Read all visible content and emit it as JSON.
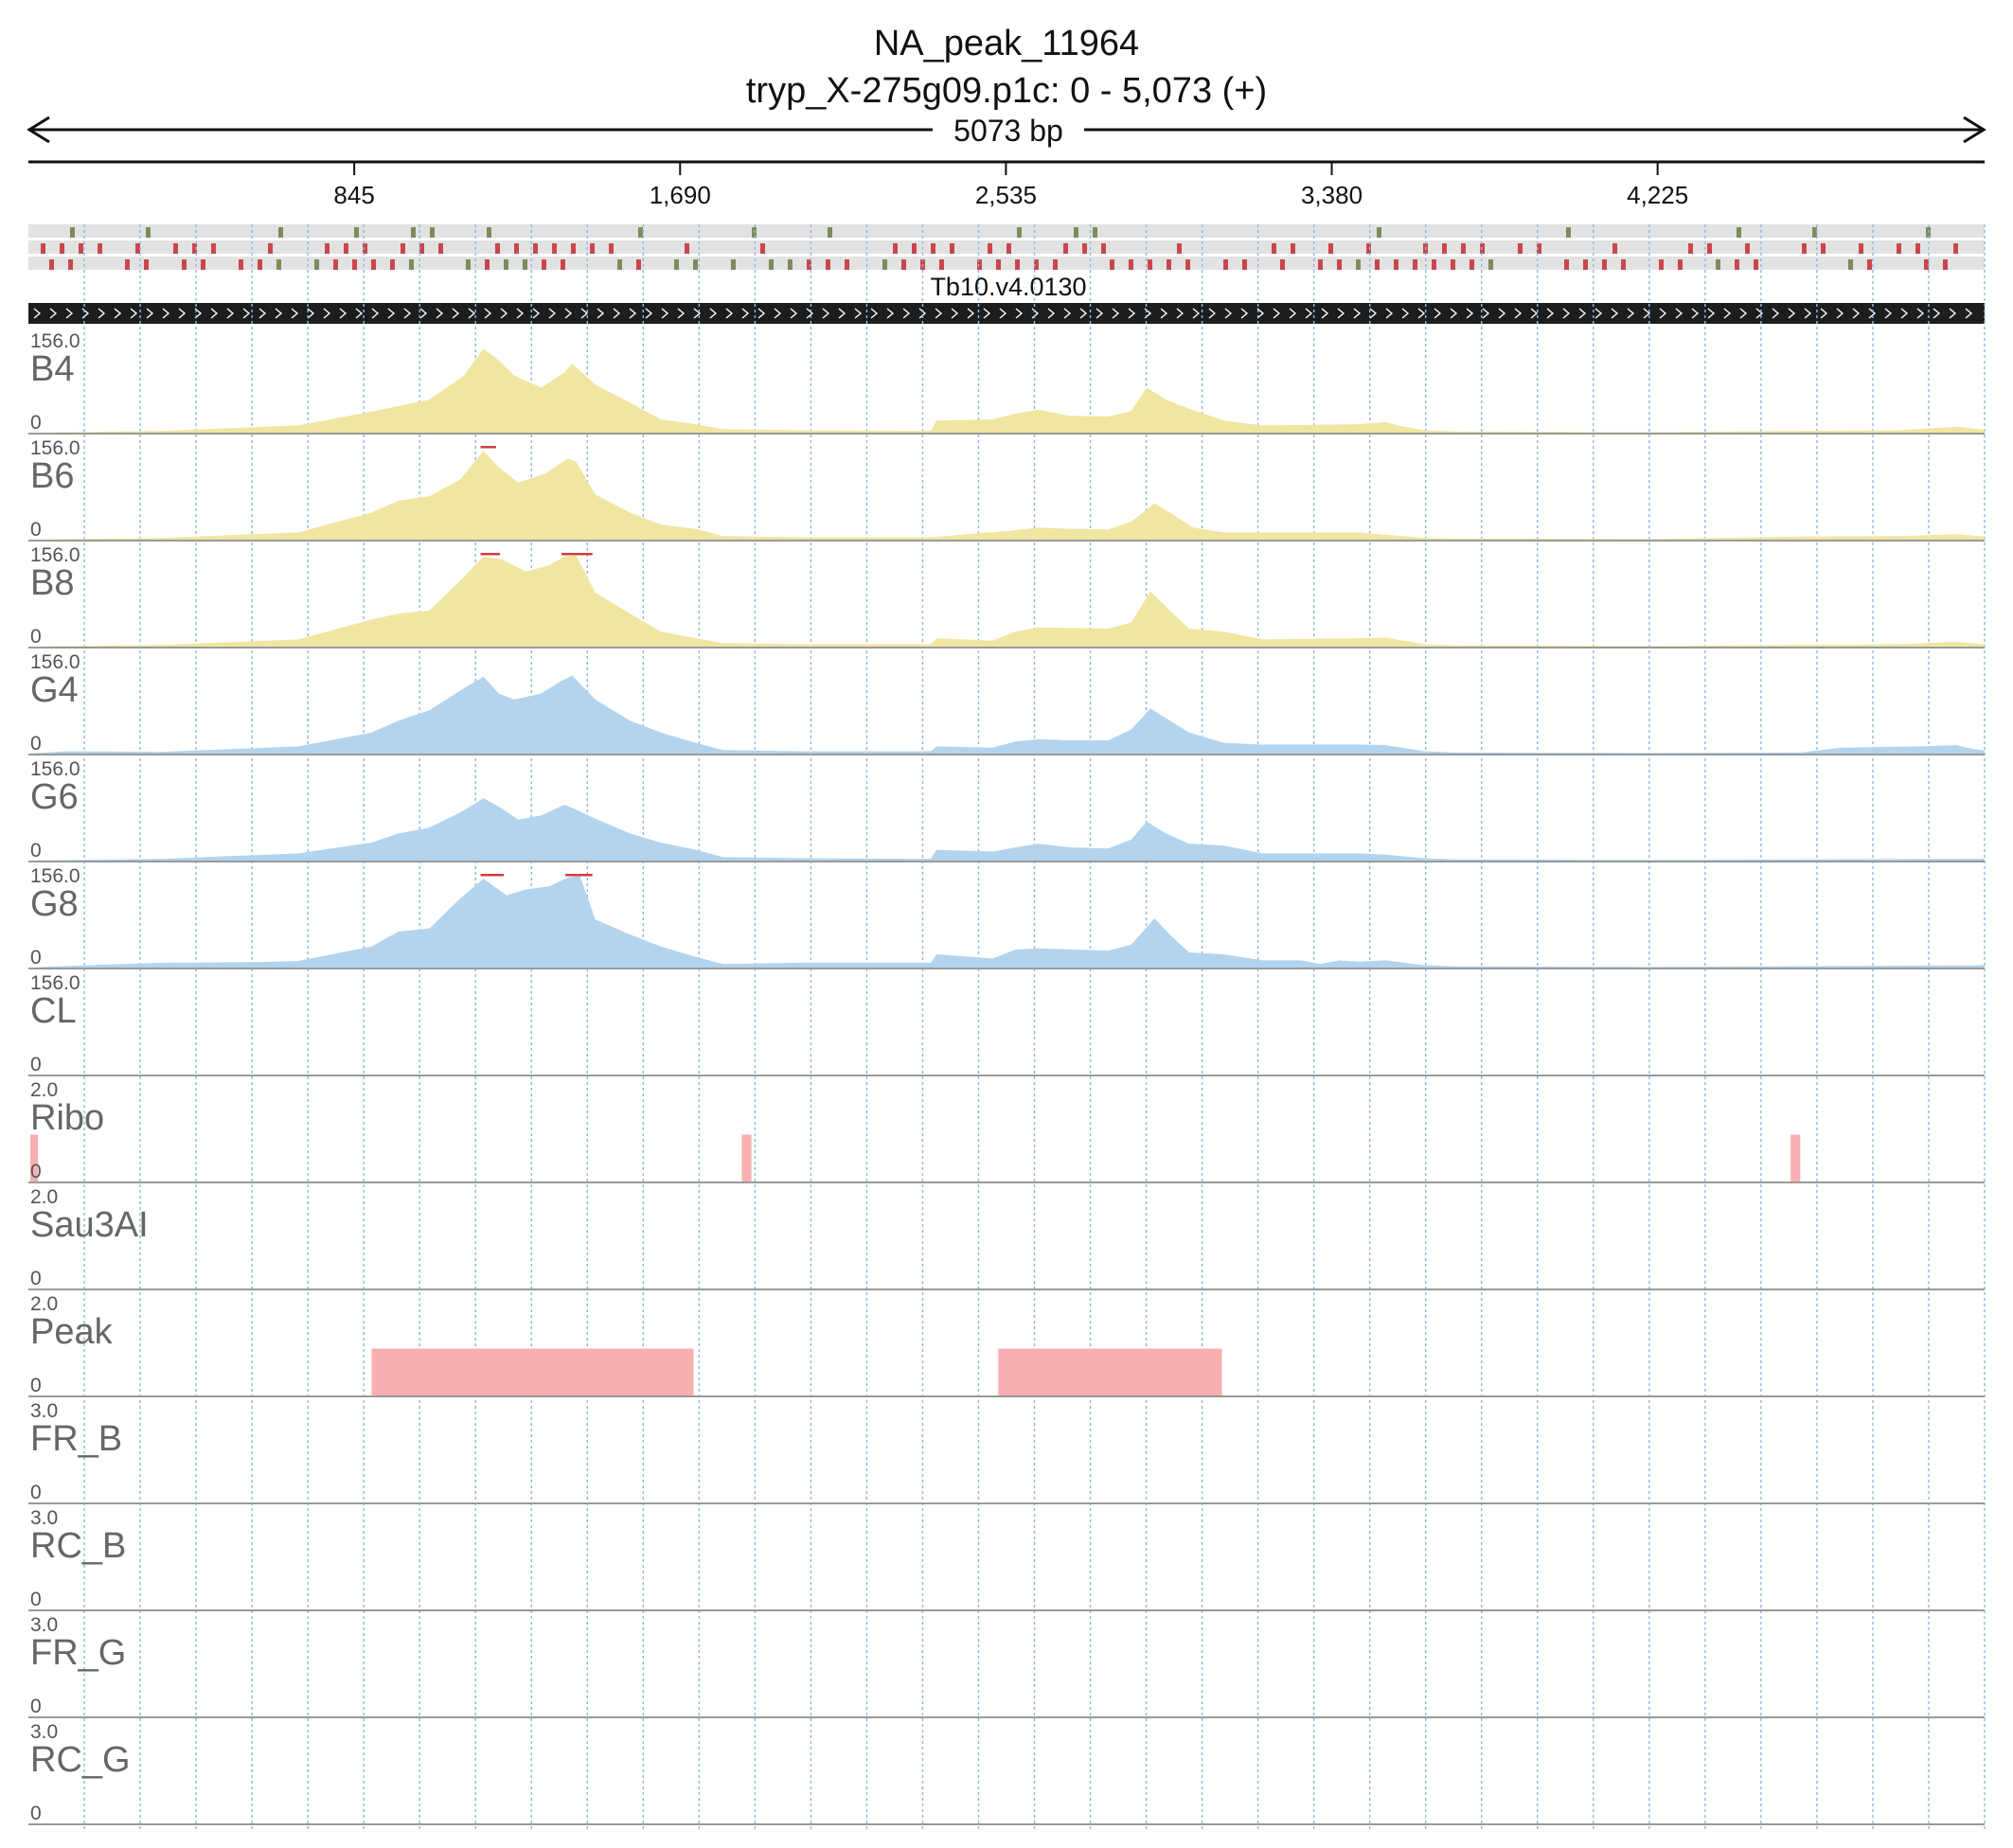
{
  "header": {
    "title": "NA_peak_11964",
    "locus": "tryp_X-275g09.p1c: 0 - 5,073 (+)",
    "span_label": "5073 bp"
  },
  "gene": {
    "name": "Tb10.v4.0130",
    "strand": "+"
  },
  "chart_data": {
    "type": "area",
    "x_range": [
      0,
      5073
    ],
    "x_ticks": [
      845,
      1690,
      2535,
      3380,
      4225
    ],
    "x_tick_labels": [
      "845",
      "1,690",
      "2,535",
      "3,380",
      "4,225"
    ],
    "grid": true,
    "tracks": [
      {
        "name": "B4",
        "max_label": "156.0",
        "min_label": "0",
        "ymax": 156,
        "color": "#f0e6a2",
        "kind": "coverage",
        "profile": "B4"
      },
      {
        "name": "B6",
        "max_label": "156.0",
        "min_label": "0",
        "ymax": 156,
        "color": "#f0e6a2",
        "kind": "coverage",
        "profile": "B6"
      },
      {
        "name": "B8",
        "max_label": "156.0",
        "min_label": "0",
        "ymax": 156,
        "color": "#f0e6a2",
        "kind": "coverage",
        "profile": "B8"
      },
      {
        "name": "G4",
        "max_label": "156.0",
        "min_label": "0",
        "ymax": 156,
        "color": "#b3d4ee",
        "kind": "coverage",
        "profile": "G4"
      },
      {
        "name": "G6",
        "max_label": "156.0",
        "min_label": "0",
        "ymax": 156,
        "color": "#b3d4ee",
        "kind": "coverage",
        "profile": "G6"
      },
      {
        "name": "G8",
        "max_label": "156.0",
        "min_label": "0",
        "ymax": 156,
        "color": "#b3d4ee",
        "kind": "coverage",
        "profile": "G8"
      },
      {
        "name": "CL",
        "max_label": "156.0",
        "min_label": "0",
        "ymax": 156,
        "color": "#b3d4ee",
        "kind": "empty"
      },
      {
        "name": "Ribo",
        "max_label": "2.0",
        "min_label": "0",
        "ymax": 2,
        "color": "#f7b0b0",
        "kind": "intervals",
        "intervals": [
          [
            5,
            25,
            1
          ],
          [
            1850,
            1875,
            1
          ],
          [
            4570,
            4595,
            1
          ]
        ]
      },
      {
        "name": "Sau3AI",
        "max_label": "2.0",
        "min_label": "0",
        "ymax": 2,
        "color": "#f7b0b0",
        "kind": "empty"
      },
      {
        "name": "Peak",
        "max_label": "2.0",
        "min_label": "0",
        "ymax": 2,
        "color": "#f7b0b0",
        "kind": "intervals",
        "intervals": [
          [
            890,
            1725,
            1
          ],
          [
            2515,
            3095,
            1
          ]
        ]
      },
      {
        "name": "FR_B",
        "max_label": "3.0",
        "min_label": "0",
        "ymax": 3,
        "color": "#f7b0b0",
        "kind": "empty"
      },
      {
        "name": "RC_B",
        "max_label": "3.0",
        "min_label": "0",
        "ymax": 3,
        "color": "#f7b0b0",
        "kind": "empty"
      },
      {
        "name": "FR_G",
        "max_label": "3.0",
        "min_label": "0",
        "ymax": 3,
        "color": "#f7b0b0",
        "kind": "empty"
      },
      {
        "name": "RC_G",
        "max_label": "3.0",
        "min_label": "0",
        "ymax": 3,
        "color": "#f7b0b0",
        "kind": "empty"
      }
    ],
    "coverage_profiles": {
      "B4": [
        [
          0,
          0
        ],
        [
          350,
          3
        ],
        [
          700,
          12
        ],
        [
          890,
          35
        ],
        [
          1040,
          55
        ],
        [
          1130,
          95
        ],
        [
          1180,
          140
        ],
        [
          1220,
          120
        ],
        [
          1260,
          95
        ],
        [
          1330,
          75
        ],
        [
          1390,
          100
        ],
        [
          1410,
          115
        ],
        [
          1470,
          80
        ],
        [
          1560,
          50
        ],
        [
          1640,
          22
        ],
        [
          1730,
          14
        ],
        [
          1800,
          6
        ],
        [
          2000,
          4
        ],
        [
          2340,
          3
        ],
        [
          2355,
          20
        ],
        [
          2500,
          22
        ],
        [
          2560,
          32
        ],
        [
          2620,
          38
        ],
        [
          2700,
          28
        ],
        [
          2800,
          27
        ],
        [
          2860,
          36
        ],
        [
          2900,
          75
        ],
        [
          2950,
          55
        ],
        [
          3010,
          40
        ],
        [
          3100,
          20
        ],
        [
          3200,
          12
        ],
        [
          3450,
          14
        ],
        [
          3520,
          18
        ],
        [
          3550,
          12
        ],
        [
          3620,
          4
        ],
        [
          3700,
          2
        ],
        [
          4200,
          1
        ],
        [
          4600,
          3
        ],
        [
          4850,
          4
        ],
        [
          5000,
          10
        ],
        [
          5073,
          5
        ]
      ],
      "B6": [
        [
          0,
          0
        ],
        [
          350,
          3
        ],
        [
          700,
          12
        ],
        [
          890,
          45
        ],
        [
          960,
          65
        ],
        [
          1040,
          72
        ],
        [
          1120,
          100
        ],
        [
          1180,
          148
        ],
        [
          1220,
          120
        ],
        [
          1270,
          95
        ],
        [
          1340,
          110
        ],
        [
          1400,
          135
        ],
        [
          1420,
          130
        ],
        [
          1470,
          75
        ],
        [
          1560,
          45
        ],
        [
          1640,
          25
        ],
        [
          1730,
          18
        ],
        [
          1800,
          6
        ],
        [
          2000,
          4
        ],
        [
          2340,
          4
        ],
        [
          2550,
          15
        ],
        [
          2620,
          20
        ],
        [
          2700,
          18
        ],
        [
          2800,
          17
        ],
        [
          2860,
          30
        ],
        [
          2920,
          60
        ],
        [
          2960,
          45
        ],
        [
          3020,
          20
        ],
        [
          3100,
          12
        ],
        [
          3450,
          12
        ],
        [
          3520,
          8
        ],
        [
          3620,
          3
        ],
        [
          3700,
          2
        ],
        [
          4200,
          1
        ],
        [
          4600,
          5
        ],
        [
          4850,
          6
        ],
        [
          5000,
          9
        ],
        [
          5073,
          5
        ]
      ],
      "B8": [
        [
          0,
          0
        ],
        [
          350,
          3
        ],
        [
          700,
          12
        ],
        [
          890,
          45
        ],
        [
          960,
          55
        ],
        [
          1040,
          60
        ],
        [
          1120,
          110
        ],
        [
          1180,
          150
        ],
        [
          1230,
          145
        ],
        [
          1290,
          125
        ],
        [
          1350,
          135
        ],
        [
          1390,
          150
        ],
        [
          1420,
          152
        ],
        [
          1470,
          90
        ],
        [
          1560,
          55
        ],
        [
          1640,
          25
        ],
        [
          1730,
          14
        ],
        [
          1800,
          6
        ],
        [
          2000,
          4
        ],
        [
          2340,
          4
        ],
        [
          2355,
          14
        ],
        [
          2500,
          10
        ],
        [
          2560,
          25
        ],
        [
          2620,
          32
        ],
        [
          2800,
          30
        ],
        [
          2860,
          40
        ],
        [
          2910,
          92
        ],
        [
          2960,
          60
        ],
        [
          3010,
          30
        ],
        [
          3100,
          25
        ],
        [
          3200,
          12
        ],
        [
          3450,
          14
        ],
        [
          3520,
          15
        ],
        [
          3620,
          4
        ],
        [
          3700,
          2
        ],
        [
          4200,
          1
        ],
        [
          4600,
          3
        ],
        [
          4850,
          4
        ],
        [
          5000,
          8
        ],
        [
          5073,
          4
        ]
      ],
      "G4": [
        [
          0,
          0
        ],
        [
          100,
          4
        ],
        [
          350,
          3
        ],
        [
          700,
          12
        ],
        [
          890,
          35
        ],
        [
          960,
          55
        ],
        [
          1040,
          72
        ],
        [
          1120,
          105
        ],
        [
          1180,
          128
        ],
        [
          1220,
          100
        ],
        [
          1260,
          90
        ],
        [
          1330,
          100
        ],
        [
          1380,
          120
        ],
        [
          1410,
          130
        ],
        [
          1470,
          90
        ],
        [
          1560,
          55
        ],
        [
          1640,
          35
        ],
        [
          1730,
          18
        ],
        [
          1800,
          6
        ],
        [
          2000,
          4
        ],
        [
          2340,
          4
        ],
        [
          2355,
          12
        ],
        [
          2500,
          10
        ],
        [
          2560,
          20
        ],
        [
          2620,
          24
        ],
        [
          2700,
          22
        ],
        [
          2800,
          22
        ],
        [
          2860,
          40
        ],
        [
          2910,
          75
        ],
        [
          2960,
          55
        ],
        [
          3010,
          35
        ],
        [
          3100,
          18
        ],
        [
          3200,
          15
        ],
        [
          3450,
          15
        ],
        [
          3520,
          14
        ],
        [
          3620,
          4
        ],
        [
          3700,
          2
        ],
        [
          4200,
          1
        ],
        [
          4600,
          2
        ],
        [
          4700,
          10
        ],
        [
          4900,
          12
        ],
        [
          5000,
          14
        ],
        [
          5040,
          8
        ],
        [
          5073,
          5
        ]
      ],
      "G6": [
        [
          0,
          0
        ],
        [
          350,
          3
        ],
        [
          700,
          12
        ],
        [
          890,
          30
        ],
        [
          960,
          45
        ],
        [
          1040,
          55
        ],
        [
          1120,
          80
        ],
        [
          1180,
          104
        ],
        [
          1220,
          90
        ],
        [
          1270,
          68
        ],
        [
          1330,
          75
        ],
        [
          1390,
          93
        ],
        [
          1420,
          85
        ],
        [
          1470,
          70
        ],
        [
          1560,
          45
        ],
        [
          1640,
          30
        ],
        [
          1730,
          18
        ],
        [
          1800,
          6
        ],
        [
          2000,
          4
        ],
        [
          2340,
          3
        ],
        [
          2355,
          18
        ],
        [
          2500,
          15
        ],
        [
          2560,
          22
        ],
        [
          2620,
          28
        ],
        [
          2700,
          22
        ],
        [
          2800,
          20
        ],
        [
          2860,
          35
        ],
        [
          2900,
          65
        ],
        [
          2950,
          45
        ],
        [
          3010,
          28
        ],
        [
          3100,
          25
        ],
        [
          3200,
          12
        ],
        [
          3450,
          12
        ],
        [
          3520,
          10
        ],
        [
          3620,
          4
        ],
        [
          3700,
          2
        ],
        [
          4200,
          1
        ],
        [
          4600,
          2
        ],
        [
          5073,
          3
        ]
      ],
      "G8": [
        [
          0,
          0
        ],
        [
          200,
          5
        ],
        [
          350,
          8
        ],
        [
          600,
          9
        ],
        [
          700,
          11
        ],
        [
          890,
          35
        ],
        [
          960,
          60
        ],
        [
          1040,
          65
        ],
        [
          1120,
          115
        ],
        [
          1180,
          148
        ],
        [
          1240,
          120
        ],
        [
          1290,
          130
        ],
        [
          1350,
          135
        ],
        [
          1400,
          150
        ],
        [
          1430,
          153
        ],
        [
          1470,
          80
        ],
        [
          1560,
          55
        ],
        [
          1640,
          35
        ],
        [
          1730,
          18
        ],
        [
          1800,
          6
        ],
        [
          2000,
          8
        ],
        [
          2340,
          8
        ],
        [
          2355,
          22
        ],
        [
          2500,
          15
        ],
        [
          2560,
          30
        ],
        [
          2620,
          32
        ],
        [
          2800,
          28
        ],
        [
          2860,
          38
        ],
        [
          2920,
          82
        ],
        [
          2960,
          55
        ],
        [
          3010,
          25
        ],
        [
          3100,
          22
        ],
        [
          3200,
          12
        ],
        [
          3300,
          12
        ],
        [
          3350,
          6
        ],
        [
          3400,
          12
        ],
        [
          3450,
          10
        ],
        [
          3520,
          12
        ],
        [
          3620,
          4
        ],
        [
          3700,
          2
        ],
        [
          4200,
          1
        ],
        [
          5073,
          4
        ]
      ]
    }
  }
}
